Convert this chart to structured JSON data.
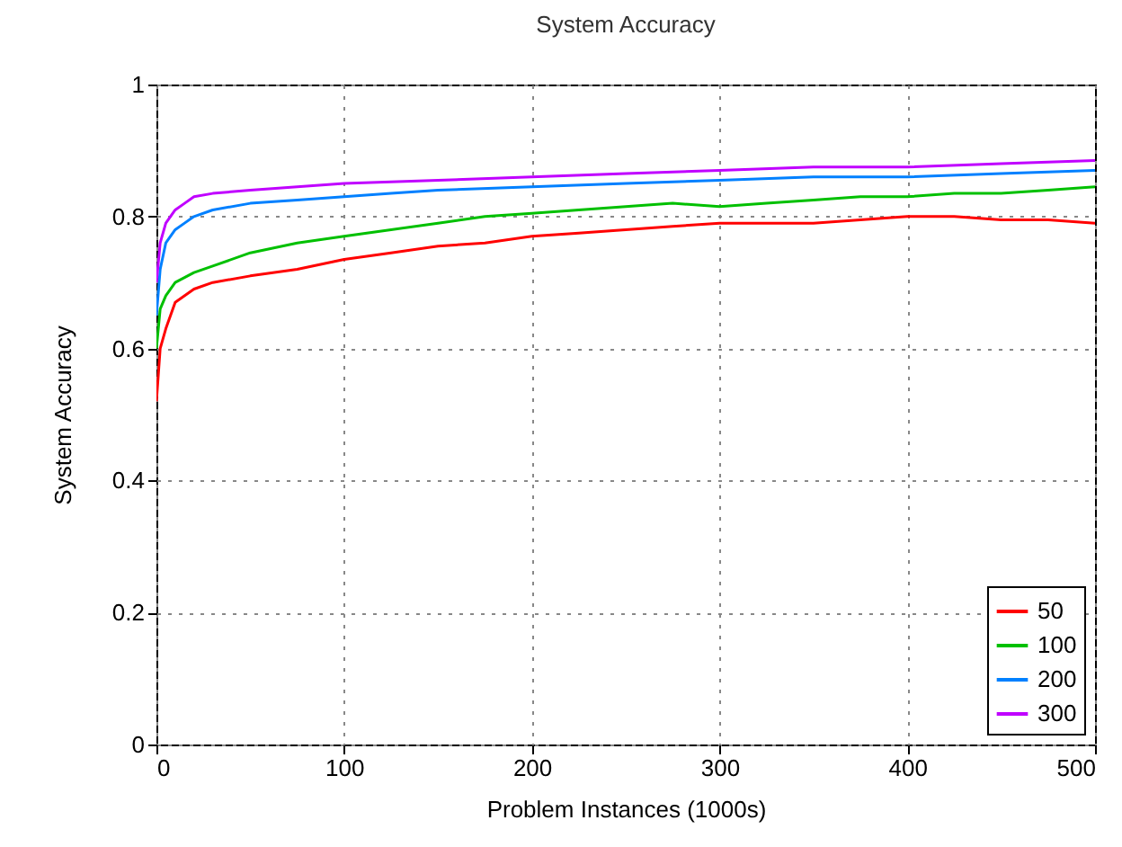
{
  "chart_data": {
    "type": "line",
    "title": "System Accuracy",
    "xlabel": "Problem Instances (1000s)",
    "ylabel": "System Accuracy",
    "xlim": [
      0,
      500
    ],
    "xticks": [
      0,
      100,
      200,
      300,
      400,
      500
    ],
    "ylim": [
      0,
      1
    ],
    "yticks": [
      0,
      0.2,
      0.4,
      0.6,
      0.8,
      1
    ],
    "grid": true,
    "legend": "bottom right",
    "line_style": "solid",
    "marker": "none",
    "series": [
      {
        "name": "50",
        "color": "#ff0000",
        "x": [
          0,
          2,
          5,
          10,
          20,
          30,
          50,
          75,
          100,
          125,
          150,
          175,
          200,
          225,
          250,
          275,
          300,
          325,
          350,
          375,
          400,
          425,
          450,
          475,
          500
        ],
        "values": [
          0.52,
          0.6,
          0.63,
          0.67,
          0.69,
          0.7,
          0.71,
          0.72,
          0.735,
          0.745,
          0.755,
          0.76,
          0.77,
          0.775,
          0.78,
          0.785,
          0.79,
          0.79,
          0.79,
          0.795,
          0.8,
          0.8,
          0.795,
          0.795,
          0.79
        ]
      },
      {
        "name": "100",
        "color": "#00c000",
        "x": [
          0,
          2,
          5,
          10,
          20,
          30,
          50,
          75,
          100,
          125,
          150,
          175,
          200,
          225,
          250,
          275,
          300,
          325,
          350,
          375,
          400,
          425,
          450,
          475,
          500
        ],
        "values": [
          0.6,
          0.66,
          0.68,
          0.7,
          0.715,
          0.725,
          0.745,
          0.76,
          0.77,
          0.78,
          0.79,
          0.8,
          0.805,
          0.81,
          0.815,
          0.82,
          0.815,
          0.82,
          0.825,
          0.83,
          0.83,
          0.835,
          0.835,
          0.84,
          0.845
        ]
      },
      {
        "name": "200",
        "color": "#0080ff",
        "x": [
          0,
          2,
          5,
          10,
          15,
          20,
          30,
          50,
          75,
          100,
          125,
          150,
          200,
          250,
          300,
          350,
          400,
          450,
          500
        ],
        "values": [
          0.65,
          0.72,
          0.76,
          0.78,
          0.79,
          0.8,
          0.81,
          0.82,
          0.825,
          0.83,
          0.835,
          0.84,
          0.845,
          0.85,
          0.855,
          0.86,
          0.86,
          0.865,
          0.87
        ]
      },
      {
        "name": "300",
        "color": "#c000ff",
        "x": [
          0,
          2,
          5,
          10,
          15,
          20,
          30,
          50,
          75,
          100,
          150,
          200,
          250,
          300,
          350,
          400,
          450,
          500
        ],
        "values": [
          0.7,
          0.76,
          0.79,
          0.81,
          0.82,
          0.83,
          0.835,
          0.84,
          0.845,
          0.85,
          0.855,
          0.86,
          0.865,
          0.87,
          0.875,
          0.875,
          0.88,
          0.885
        ]
      }
    ]
  }
}
